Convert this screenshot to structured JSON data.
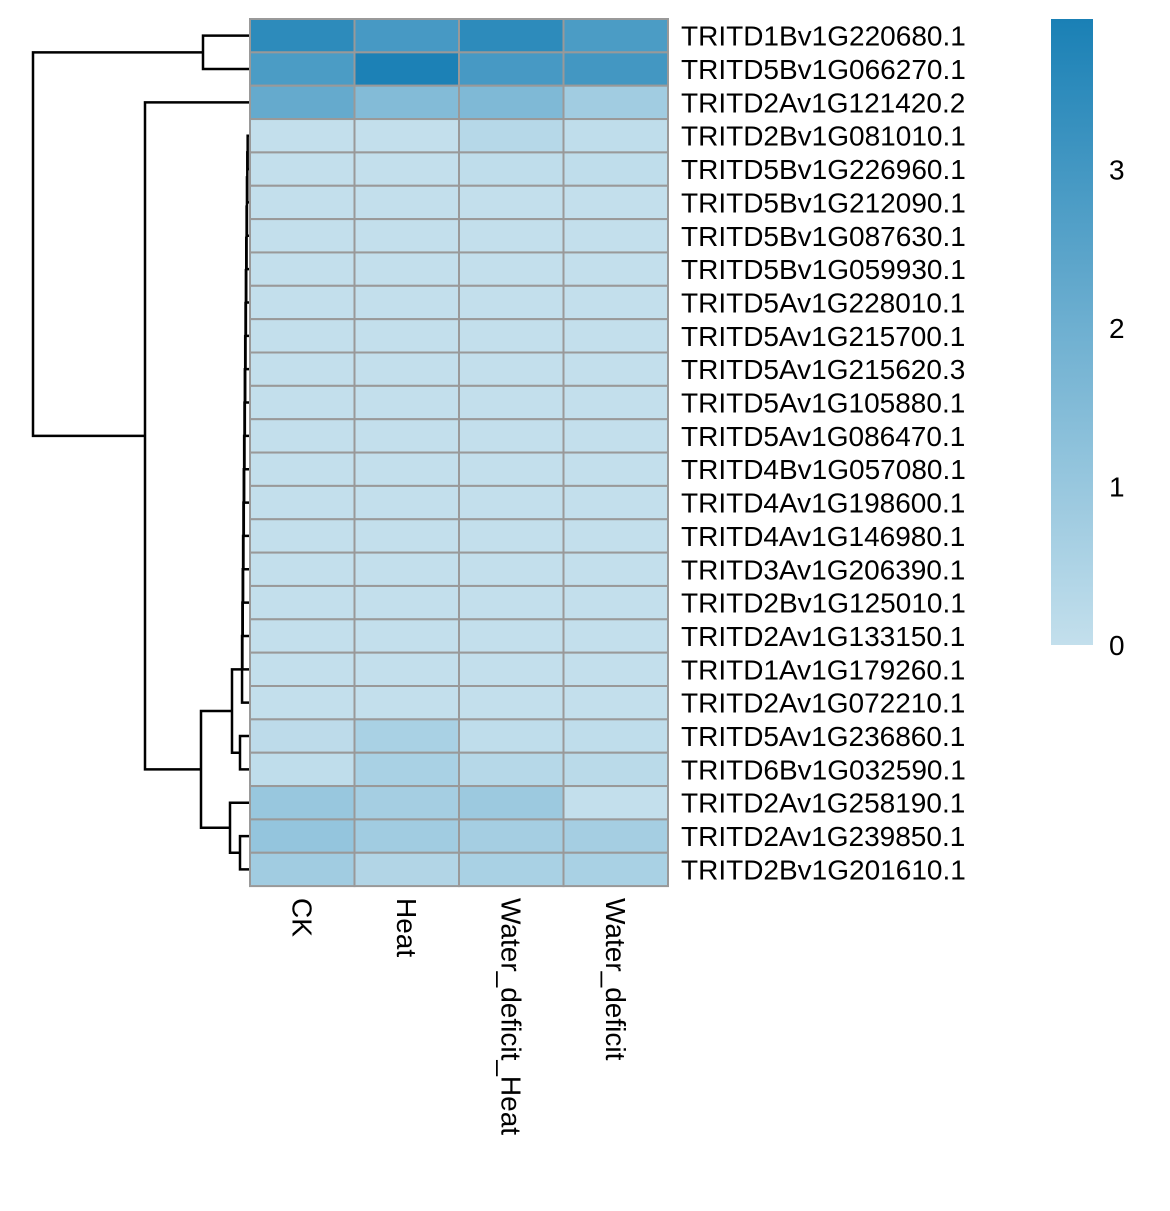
{
  "chart_data": {
    "type": "heatmap",
    "columns": [
      "CK",
      "Heat",
      "Water_deficit_Heat",
      "Water_deficit"
    ],
    "rows": [
      "TRITD1Bv1G220680.1",
      "TRITD5Bv1G066270.1",
      "TRITD2Av1G121420.2",
      "TRITD2Bv1G081010.1",
      "TRITD5Bv1G226960.1",
      "TRITD5Bv1G212090.1",
      "TRITD5Bv1G087630.1",
      "TRITD5Bv1G059930.1",
      "TRITD5Av1G228010.1",
      "TRITD5Av1G215700.1",
      "TRITD5Av1G215620.3",
      "TRITD5Av1G105880.1",
      "TRITD5Av1G086470.1",
      "TRITD4Bv1G057080.1",
      "TRITD4Av1G198600.1",
      "TRITD4Av1G146980.1",
      "TRITD3Av1G206390.1",
      "TRITD2Bv1G125010.1",
      "TRITD2Av1G133150.1",
      "TRITD1Av1G179260.1",
      "TRITD2Av1G072210.1",
      "TRITD5Av1G236860.1",
      "TRITD6Bv1G032590.1",
      "TRITD2Av1G258190.1",
      "TRITD2Av1G239850.1",
      "TRITD2Bv1G201610.1"
    ],
    "values": [
      [
        3.5,
        2.9,
        3.5,
        2.8
      ],
      [
        2.8,
        3.9,
        2.9,
        3.0
      ],
      [
        2.2,
        1.5,
        1.6,
        0.8
      ],
      [
        0.0,
        0.0,
        0.3,
        0.1
      ],
      [
        0.0,
        0.0,
        0.1,
        0.1
      ],
      [
        0.0,
        0.0,
        0.0,
        0.0
      ],
      [
        0.0,
        0.0,
        0.0,
        0.0
      ],
      [
        0.0,
        0.0,
        0.0,
        0.0
      ],
      [
        0.0,
        0.0,
        0.0,
        0.0
      ],
      [
        0.0,
        0.0,
        0.0,
        0.0
      ],
      [
        0.0,
        0.0,
        0.0,
        0.0
      ],
      [
        0.0,
        0.0,
        0.0,
        0.0
      ],
      [
        0.0,
        0.0,
        0.0,
        0.0
      ],
      [
        0.0,
        0.0,
        0.0,
        0.0
      ],
      [
        0.0,
        0.0,
        0.0,
        0.0
      ],
      [
        0.0,
        0.0,
        0.0,
        0.0
      ],
      [
        0.0,
        0.0,
        0.0,
        0.0
      ],
      [
        0.0,
        0.0,
        0.0,
        0.0
      ],
      [
        0.0,
        0.0,
        0.0,
        0.0
      ],
      [
        0.0,
        0.0,
        0.0,
        0.0
      ],
      [
        0.0,
        0.0,
        0.0,
        0.0
      ],
      [
        0.15,
        0.6,
        0.1,
        0.1
      ],
      [
        0.1,
        0.6,
        0.3,
        0.2
      ],
      [
        1.0,
        0.7,
        0.9,
        0.0
      ],
      [
        1.1,
        0.8,
        0.7,
        0.7
      ],
      [
        0.8,
        0.4,
        0.6,
        0.6
      ]
    ],
    "color_scale": {
      "min": 0,
      "max": 3.95,
      "low_color": "#c3dfec",
      "high_color": "#1a80b5",
      "ticks": [
        0,
        1,
        2,
        3
      ],
      "tick_labels": [
        "0",
        "1",
        "2",
        "3"
      ]
    },
    "cell_border_color": "#999999",
    "dendrogram": "rows",
    "legend_position": "right"
  }
}
